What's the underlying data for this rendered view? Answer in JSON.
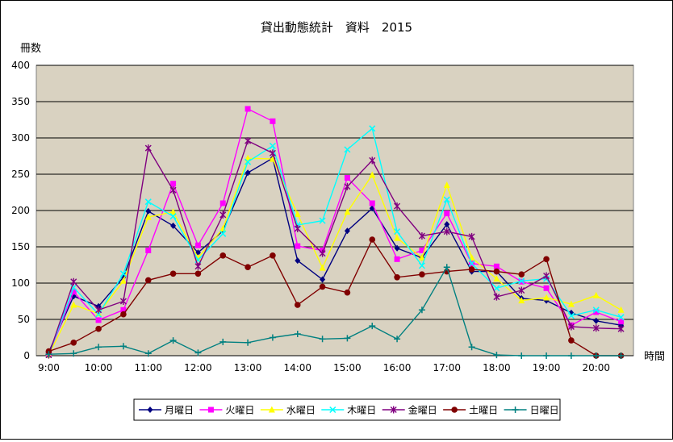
{
  "chart_data": {
    "type": "line",
    "title": "貸出動態統計　資料　2015",
    "ylabel": "冊数",
    "xlabel": "時間",
    "ylim": [
      0,
      400
    ],
    "yticks": [
      0,
      50,
      100,
      150,
      200,
      250,
      300,
      350,
      400
    ],
    "xtick_labels": [
      "9:00",
      "10:00",
      "11:00",
      "12:00",
      "13:00",
      "14:00",
      "15:00",
      "16:00",
      "17:00",
      "18:00",
      "19:00",
      "20:00"
    ],
    "grid": true,
    "legend_position": "bottom",
    "plot_background": "#d9d2c1",
    "x": [
      "9:00",
      "9:30",
      "10:00",
      "10:30",
      "11:00",
      "11:30",
      "12:00",
      "12:30",
      "13:00",
      "13:30",
      "14:00",
      "14:30",
      "15:00",
      "15:30",
      "16:00",
      "16:30",
      "17:00",
      "17:30",
      "18:00",
      "18:30",
      "19:00",
      "19:30",
      "20:00",
      "20:30"
    ],
    "series": [
      {
        "name": "月曜日",
        "color": "#000080",
        "marker": "diamond",
        "values": [
          5,
          82,
          68,
          108,
          199,
          179,
          142,
          172,
          252,
          272,
          131,
          105,
          172,
          203,
          148,
          135,
          181,
          116,
          116,
          79,
          76,
          59,
          48,
          42
        ]
      },
      {
        "name": "火曜日",
        "color": "#ff00ff",
        "marker": "square",
        "values": [
          1,
          88,
          49,
          63,
          145,
          237,
          152,
          210,
          340,
          323,
          151,
          145,
          245,
          210,
          133,
          145,
          196,
          127,
          123,
          102,
          93,
          42,
          60,
          47
        ]
      },
      {
        "name": "水曜日",
        "color": "#ffff00",
        "marker": "triangle",
        "values": [
          1,
          70,
          58,
          103,
          191,
          198,
          135,
          175,
          272,
          271,
          195,
          121,
          198,
          249,
          162,
          135,
          235,
          135,
          106,
          76,
          80,
          71,
          83,
          63
        ]
      },
      {
        "name": "木曜日",
        "color": "#00ffff",
        "marker": "x",
        "values": [
          1,
          94,
          57,
          113,
          212,
          192,
          132,
          168,
          267,
          289,
          180,
          186,
          284,
          313,
          171,
          124,
          215,
          127,
          93,
          103,
          106,
          55,
          63,
          53
        ]
      },
      {
        "name": "金曜日",
        "color": "#800080",
        "marker": "star",
        "values": [
          1,
          102,
          63,
          75,
          286,
          228,
          123,
          194,
          296,
          279,
          175,
          141,
          233,
          269,
          206,
          165,
          171,
          164,
          81,
          90,
          110,
          40,
          38,
          37
        ]
      },
      {
        "name": "土曜日",
        "color": "#800000",
        "marker": "circle",
        "values": [
          6,
          18,
          37,
          57,
          104,
          113,
          113,
          138,
          122,
          138,
          70,
          95,
          87,
          160,
          108,
          112,
          116,
          119,
          116,
          112,
          133,
          21,
          0,
          0
        ]
      },
      {
        "name": "日曜日",
        "color": "#008080",
        "marker": "plus",
        "values": [
          2,
          3,
          12,
          13,
          3,
          21,
          4,
          19,
          18,
          25,
          30,
          23,
          24,
          41,
          23,
          63,
          122,
          12,
          1,
          0,
          0,
          0,
          0,
          0
        ]
      }
    ]
  }
}
